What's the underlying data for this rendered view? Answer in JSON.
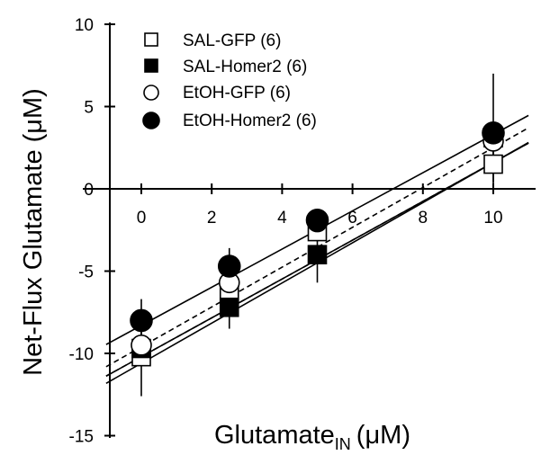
{
  "chart_data": {
    "type": "scatter",
    "title": "",
    "xlabel": {
      "main": "Glutamate",
      "subscript": "IN",
      "unit": "(μM)"
    },
    "ylabel": "Net-Flux Glutamate (μM)",
    "xlim": [
      -1,
      11
    ],
    "ylim": [
      -15,
      10
    ],
    "x_ticks": [
      0,
      2,
      4,
      6,
      8,
      10
    ],
    "y_ticks": [
      10,
      5,
      0,
      -5,
      -10,
      -15
    ],
    "legend_position": "top-left",
    "grid": false,
    "series": [
      {
        "name": "SAL-GFP (6)",
        "marker": "open-square",
        "line_style": "solid",
        "fit": {
          "slope": 1.18,
          "intercept": -10.2
        },
        "points": [
          {
            "x": 0,
            "y": -10.2,
            "err": 2.4
          },
          {
            "x": 2.5,
            "y": -6.3,
            "err": 0.8
          },
          {
            "x": 5,
            "y": -2.6,
            "err": 0.6
          },
          {
            "x": 10,
            "y": 1.5,
            "err": 1.1
          }
        ]
      },
      {
        "name": "SAL-Homer2 (6)",
        "marker": "filled-square",
        "line_style": "dashed",
        "fit": {
          "slope": 1.18,
          "intercept": -10.2
        },
        "points": [
          {
            "x": 0,
            "y": -9.7,
            "err": 0.6
          },
          {
            "x": 2.5,
            "y": -7.2,
            "err": 1.3
          },
          {
            "x": 5,
            "y": -4.0,
            "err": 1.7
          },
          {
            "x": 10,
            "y": 3.1,
            "err": 0.9
          }
        ]
      },
      {
        "name": "EtOH-GFP (6)",
        "marker": "open-circle",
        "line_style": "dashed",
        "fit": {
          "slope": 1.21,
          "intercept": -9.6
        },
        "points": [
          {
            "x": 0,
            "y": -9.5,
            "err": 0.8
          },
          {
            "x": 2.5,
            "y": -5.7,
            "err": 1.2
          },
          {
            "x": 5,
            "y": -2.0,
            "err": 0.7
          },
          {
            "x": 10,
            "y": 2.9,
            "err": 1.0
          }
        ]
      },
      {
        "name": "EtOH-Homer2 (6)",
        "marker": "filled-circle",
        "line_style": "solid",
        "fit": {
          "slope": 1.16,
          "intercept": -8.3
        },
        "points": [
          {
            "x": 0,
            "y": -8.0,
            "err": 1.3
          },
          {
            "x": 2.5,
            "y": -4.7,
            "err": 1.1
          },
          {
            "x": 5,
            "y": -1.9,
            "err": 0.6
          },
          {
            "x": 10,
            "y": 3.4,
            "err": 3.6
          }
        ]
      },
      {
        "name": "",
        "marker": "none",
        "line_style": "solid",
        "fit": {
          "slope": 1.22,
          "intercept": -10.6
        },
        "points": []
      }
    ]
  }
}
